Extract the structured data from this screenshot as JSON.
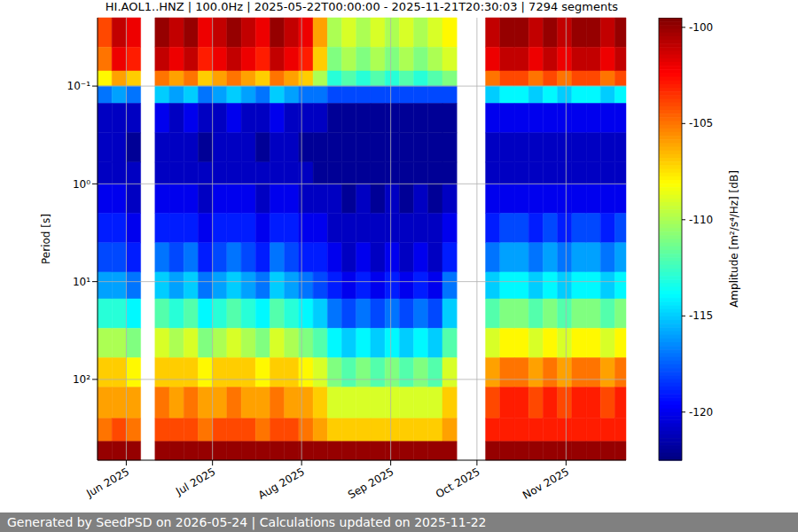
{
  "chart_data": {
    "type": "heatmap",
    "title": "HI.AOL1..HNZ | 100.0Hz | 2025-05-22T00:00:00 - 2025-11-21T20:30:03 | 7294 segments",
    "y_label": "Period [s]",
    "footer": "Generated by SeedPSD on 2026-05-24 | Calculations updated on 2025-11-22",
    "log": "y",
    "grid": true,
    "xlim": [
      "2025-05-22T00:00:00",
      "2025-11-21T20:30:03"
    ],
    "xticks": [
      {
        "value": "2025-06-01",
        "label": "Jun 2025"
      },
      {
        "value": "2025-07-01",
        "label": "Jul 2025"
      },
      {
        "value": "2025-08-01",
        "label": "Aug 2025"
      },
      {
        "value": "2025-09-01",
        "label": "Sep 2025"
      },
      {
        "value": "2025-10-01",
        "label": "Oct 2025"
      },
      {
        "value": "2025-11-01",
        "label": "Nov 2025"
      }
    ],
    "ylim": [
      0.02,
      670
    ],
    "yticks": [
      {
        "value": 0.1,
        "label": "10⁻¹"
      },
      {
        "value": 1,
        "label": "10⁰"
      },
      {
        "value": 10,
        "label": "10¹"
      },
      {
        "value": 100,
        "label": "10²"
      }
    ],
    "x_bins": [
      "2025-05-22",
      "2025-05-27",
      "2025-06-01",
      "2025-06-06",
      "2025-06-11",
      "2025-06-16",
      "2025-06-21",
      "2025-06-26",
      "2025-07-01",
      "2025-07-06",
      "2025-07-11",
      "2025-07-16",
      "2025-07-21",
      "2025-07-26",
      "2025-07-31",
      "2025-08-05",
      "2025-08-10",
      "2025-08-15",
      "2025-08-20",
      "2025-08-25",
      "2025-08-30",
      "2025-09-04",
      "2025-09-09",
      "2025-09-14",
      "2025-09-19",
      "2025-09-24",
      "2025-09-29",
      "2025-10-04",
      "2025-10-09",
      "2025-10-14",
      "2025-10-19",
      "2025-10-24",
      "2025-10-29",
      "2025-11-03",
      "2025-11-08",
      "2025-11-13",
      "2025-11-18",
      "2025-11-21T20:30:03"
    ],
    "y_bins": [
      0.02,
      0.04,
      0.07,
      0.1,
      0.15,
      0.3,
      0.6,
      1,
      2,
      4,
      8,
      15,
      30,
      60,
      120,
      250,
      430,
      670
    ],
    "cells": [
      [
        -104,
        -105,
        -108,
        -117,
        -121,
        -121,
        -121,
        -120,
        -119,
        -118,
        -116,
        -113,
        -110,
        -107,
        -106,
        -105,
        -100
      ],
      [
        -101,
        -102,
        -106,
        -116,
        -121,
        -121,
        -121,
        -120,
        -119,
        -118,
        -116,
        -113,
        -110,
        -107,
        -106,
        -104,
        -100
      ],
      [
        -102,
        -103,
        -107,
        -117,
        -121,
        -122,
        -121,
        -121,
        -120,
        -119,
        -117,
        -114,
        -111,
        -108,
        -106,
        -105,
        -100
      ],
      null,
      [
        -100,
        -101,
        -105,
        -115,
        -120,
        -121,
        -121,
        -120,
        -119,
        -117,
        -115,
        -112,
        -109,
        -107,
        -105,
        -104,
        -100
      ],
      [
        -101,
        -102,
        -106,
        -116,
        -121,
        -121,
        -121,
        -120,
        -119,
        -118,
        -116,
        -113,
        -110,
        -107,
        -106,
        -104,
        -100
      ],
      [
        -100,
        -101,
        -105,
        -115,
        -120,
        -121,
        -121,
        -120,
        -119,
        -117,
        -115,
        -112,
        -109,
        -107,
        -105,
        -104,
        -100
      ],
      [
        -102,
        -103,
        -107,
        -117,
        -121,
        -122,
        -121,
        -121,
        -120,
        -119,
        -117,
        -114,
        -111,
        -108,
        -106,
        -105,
        -100
      ],
      [
        -101,
        -102,
        -106,
        -116,
        -121,
        -121,
        -121,
        -120,
        -119,
        -118,
        -116,
        -113,
        -110,
        -107,
        -106,
        -104,
        -100
      ],
      [
        -100,
        -101,
        -105,
        -115,
        -120,
        -121,
        -121,
        -120,
        -119,
        -117,
        -115,
        -112,
        -109,
        -107,
        -105,
        -104,
        -100
      ],
      [
        -101,
        -102,
        -106,
        -116,
        -121,
        -121,
        -121,
        -120,
        -119,
        -118,
        -116,
        -113,
        -110,
        -107,
        -106,
        -104,
        -100
      ],
      [
        -102,
        -103,
        -107,
        -117,
        -121,
        -122,
        -121,
        -121,
        -120,
        -119,
        -117,
        -114,
        -111,
        -108,
        -106,
        -105,
        -100
      ],
      [
        -100,
        -101,
        -105,
        -115,
        -120,
        -121,
        -121,
        -120,
        -119,
        -117,
        -115,
        -112,
        -109,
        -107,
        -105,
        -104,
        -100
      ],
      [
        -101,
        -102,
        -106,
        -116,
        -121,
        -121,
        -121,
        -120,
        -119,
        -118,
        -116,
        -113,
        -110,
        -107,
        -106,
        -104,
        -100
      ],
      [
        -102,
        -103,
        -107,
        -117,
        -121,
        -122,
        -121,
        -121,
        -120,
        -119,
        -117,
        -114,
        -111,
        -108,
        -106,
        -105,
        -100
      ],
      [
        -106,
        -107,
        -110,
        -117,
        -121,
        -122,
        -122,
        -121,
        -120,
        -119,
        -118,
        -115,
        -112,
        -109,
        -107,
        -106,
        -100
      ],
      [
        -110,
        -111,
        -113,
        -118,
        -122,
        -122,
        -122,
        -121,
        -121,
        -120,
        -119,
        -117,
        -114,
        -111,
        -109,
        -107,
        -100
      ],
      [
        -109,
        -110,
        -112,
        -118,
        -122,
        -122,
        -122,
        -122,
        -121,
        -121,
        -120,
        -118,
        -115,
        -112,
        -109,
        -107,
        -100
      ],
      [
        -110,
        -111,
        -113,
        -118,
        -122,
        -122,
        -122,
        -121,
        -121,
        -120,
        -119,
        -117,
        -114,
        -111,
        -109,
        -107,
        -100
      ],
      [
        -109,
        -110,
        -112,
        -118,
        -122,
        -122,
        -122,
        -122,
        -121,
        -121,
        -120,
        -118,
        -115,
        -112,
        -109,
        -107,
        -100
      ],
      [
        -110,
        -111,
        -113,
        -118,
        -122,
        -122,
        -122,
        -121,
        -121,
        -120,
        -119,
        -117,
        -114,
        -111,
        -109,
        -107,
        -100
      ],
      [
        -109,
        -110,
        -112,
        -118,
        -122,
        -122,
        -122,
        -122,
        -121,
        -121,
        -120,
        -118,
        -115,
        -112,
        -109,
        -107,
        -100
      ],
      [
        -110,
        -111,
        -113,
        -118,
        -122,
        -122,
        -122,
        -121,
        -121,
        -120,
        -119,
        -117,
        -114,
        -111,
        -109,
        -107,
        -100
      ],
      [
        -109,
        -110,
        -112,
        -118,
        -122,
        -122,
        -122,
        -122,
        -121,
        -121,
        -120,
        -118,
        -115,
        -112,
        -109,
        -107,
        -100
      ],
      [
        -108,
        -109,
        -111,
        -118,
        -122,
        -122,
        -122,
        -121,
        -120,
        -119,
        -117,
        -115,
        -112,
        -109,
        -107,
        -106,
        -100
      ],
      null,
      null,
      [
        -101,
        -102,
        -105,
        -115,
        -120,
        -121,
        -121,
        -120,
        -119,
        -117,
        -115,
        -112,
        -109,
        -106,
        -104,
        -103,
        -100
      ],
      [
        -100,
        -101,
        -104,
        -114,
        -120,
        -121,
        -121,
        -120,
        -118,
        -116,
        -114,
        -111,
        -108,
        -105,
        -103,
        -103,
        -100
      ],
      [
        -100,
        -101,
        -104,
        -114,
        -120,
        -121,
        -121,
        -120,
        -118,
        -116,
        -114,
        -111,
        -108,
        -105,
        -103,
        -103,
        -100
      ],
      [
        -101,
        -102,
        -105,
        -115,
        -120,
        -121,
        -121,
        -120,
        -119,
        -117,
        -115,
        -112,
        -109,
        -106,
        -104,
        -103,
        -100
      ],
      [
        -100,
        -101,
        -104,
        -114,
        -120,
        -121,
        -121,
        -120,
        -118,
        -116,
        -114,
        -111,
        -108,
        -105,
        -103,
        -103,
        -100
      ],
      [
        -101,
        -102,
        -105,
        -115,
        -120,
        -121,
        -121,
        -120,
        -119,
        -117,
        -115,
        -112,
        -109,
        -106,
        -104,
        -103,
        -100
      ],
      [
        -100,
        -101,
        -104,
        -114,
        -120,
        -121,
        -121,
        -120,
        -118,
        -116,
        -114,
        -111,
        -108,
        -105,
        -103,
        -103,
        -100
      ],
      [
        -100,
        -101,
        -104,
        -114,
        -120,
        -121,
        -121,
        -120,
        -118,
        -116,
        -114,
        -111,
        -108,
        -105,
        -103,
        -103,
        -100
      ],
      [
        -101,
        -102,
        -105,
        -115,
        -120,
        -121,
        -121,
        -120,
        -119,
        -117,
        -115,
        -112,
        -109,
        -106,
        -104,
        -103,
        -100
      ],
      [
        -100,
        -101,
        -104,
        -114,
        -120,
        -121,
        -121,
        -120,
        -118,
        -116,
        -114,
        -111,
        -108,
        -105,
        -103,
        -103,
        -100
      ]
    ],
    "colorbar": {
      "label": "Amplitude [m²/s⁴/Hz] [dB]",
      "range": [
        -122.5,
        -99.5
      ],
      "ticks": [
        -100,
        -105,
        -110,
        -115,
        -120
      ]
    }
  }
}
